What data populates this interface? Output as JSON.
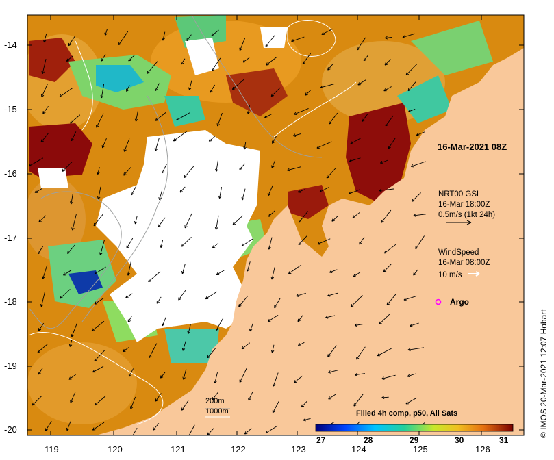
{
  "map": {
    "x_ticks": [
      "119",
      "120",
      "121",
      "122",
      "123",
      "124",
      "125",
      "126"
    ],
    "y_ticks": [
      "-14",
      "-15",
      "-16",
      "-17",
      "-18",
      "-19",
      "-20"
    ]
  },
  "annotations": {
    "date": "16-Mar-2021 08Z",
    "currents": [
      "NRT00 GSL",
      "16-Mar 18:00Z",
      "0.5m/s (1kt 24h)"
    ],
    "wind": [
      "WindSpeed",
      "16-Mar 08:00Z",
      "10 m/s"
    ],
    "argo": "Argo",
    "contours": [
      "200m",
      "1000m"
    ]
  },
  "colorbar": {
    "title": "Filled 4h comp, p50, All Sats",
    "ticks": [
      "27",
      "28",
      "29",
      "30",
      "31"
    ]
  },
  "credit": "IMOS 20-Mar-2021 12:07 Hobart",
  "colors": {
    "land": "#f9c89a",
    "ocean_warm": "#d98a10",
    "ocean_hot": "#8b0a0a",
    "arrow_white": "#ffffff",
    "argo": "#ff00ff"
  }
}
